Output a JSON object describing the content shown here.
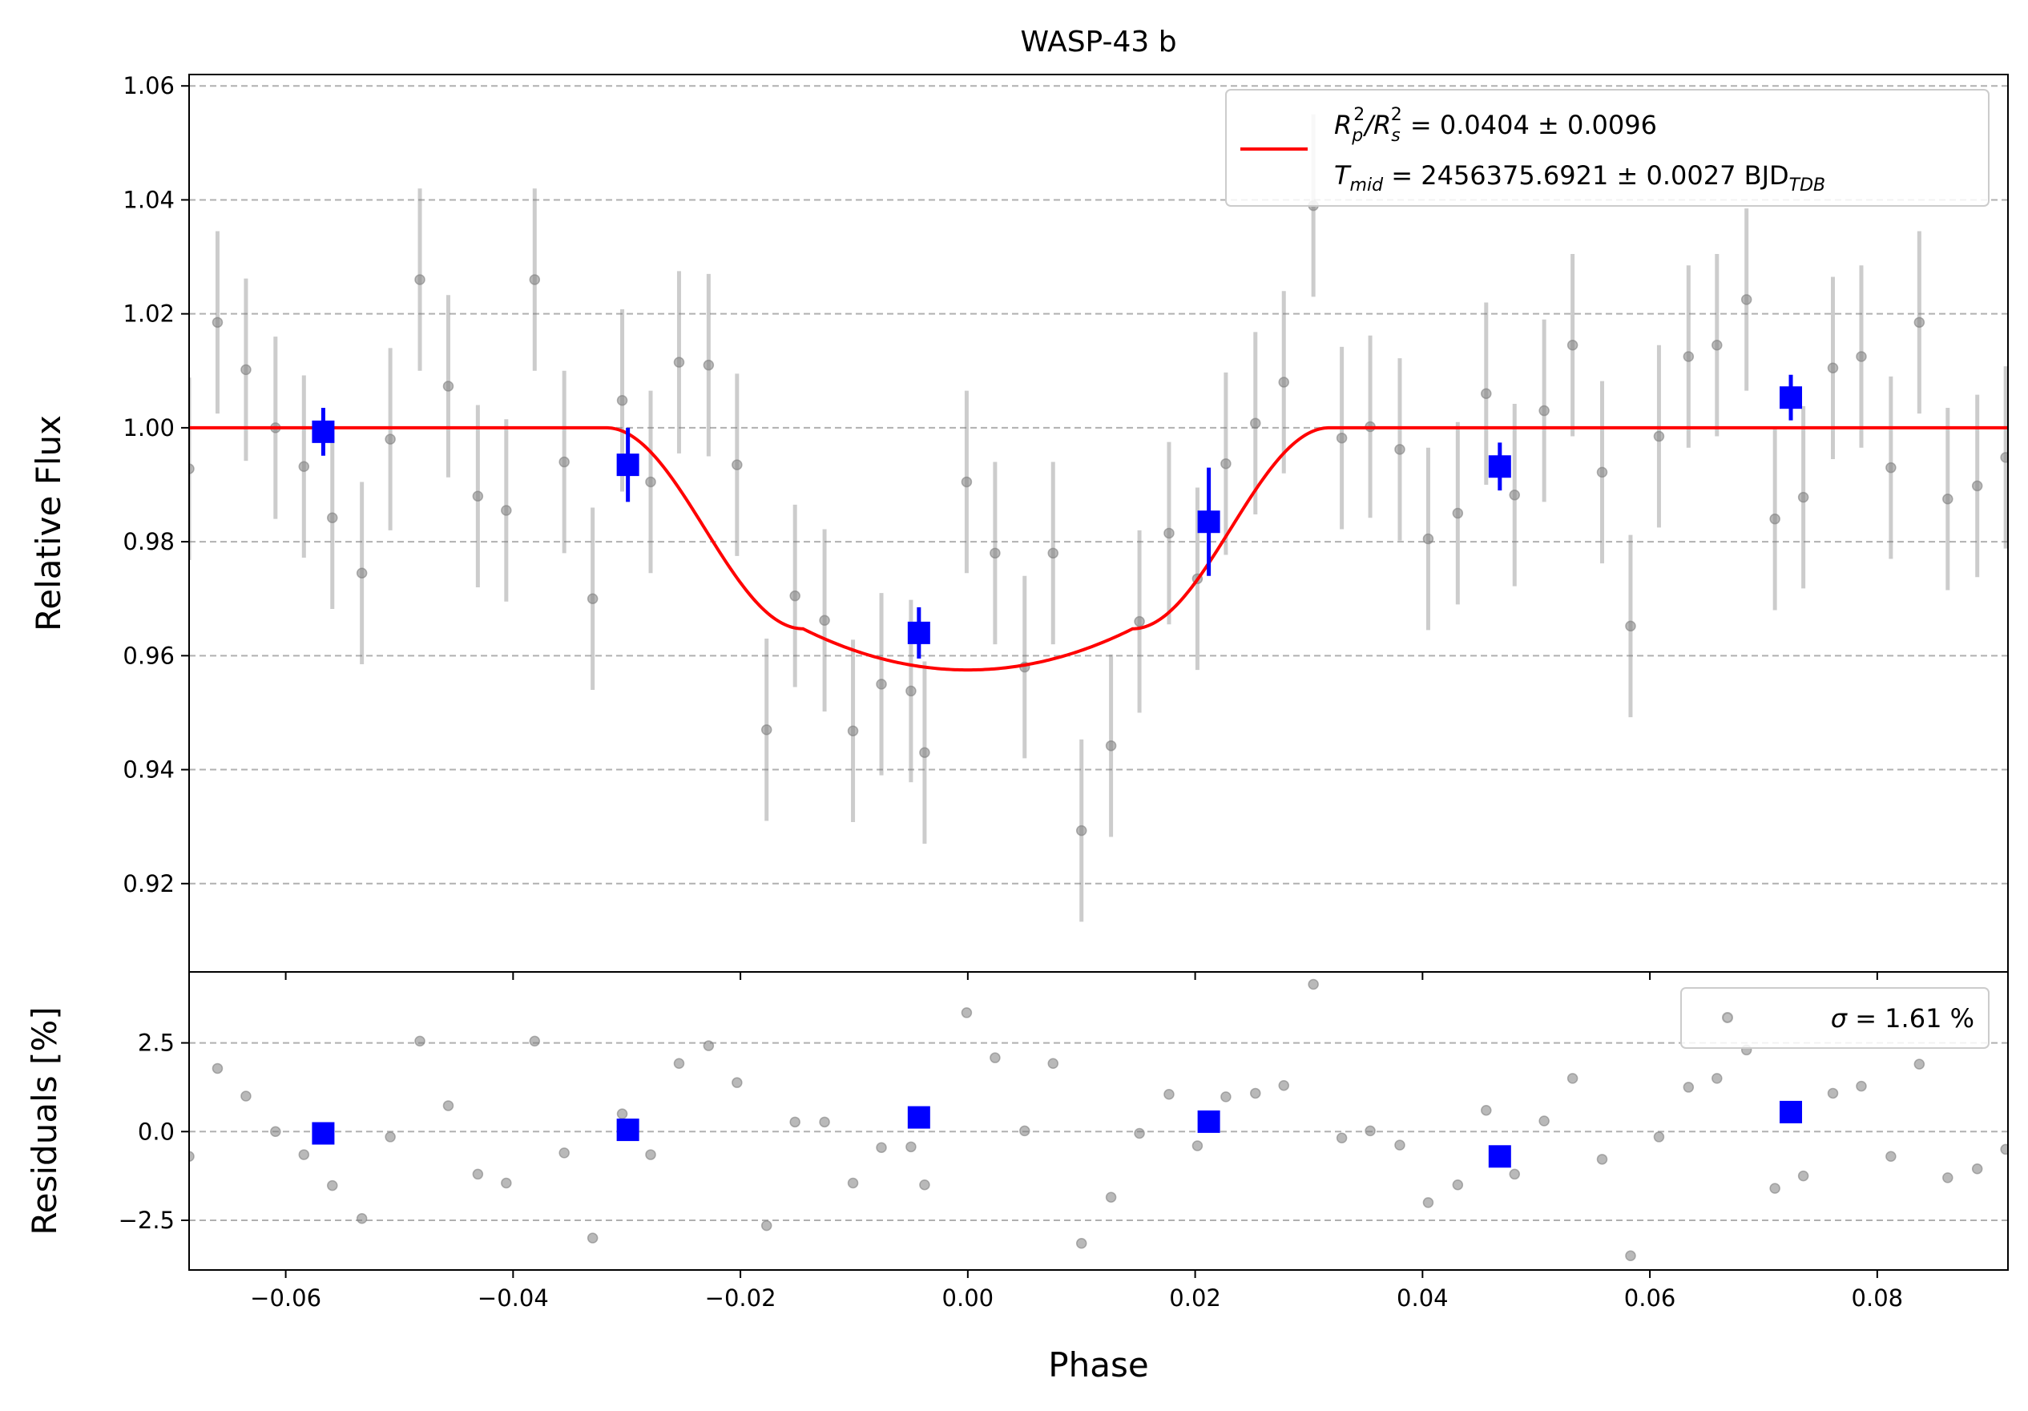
{
  "chart_data": {
    "type": "scatter",
    "title": "WASP-43 b",
    "xlabel": "Phase",
    "xlim": [
      -0.0685,
      0.0915
    ],
    "xticks": [
      "−0.06",
      "−0.04",
      "−0.02",
      "0.00",
      "0.02",
      "0.04",
      "0.06",
      "0.08"
    ],
    "xtick_values": [
      -0.06,
      -0.04,
      -0.02,
      0.0,
      0.02,
      0.04,
      0.06,
      0.08
    ],
    "colors": {
      "raw": "#808080",
      "binned": "#0000ff",
      "model": "#ff0000",
      "grid": "#b0b0b0"
    },
    "top": {
      "ylabel": "Relative Flux",
      "ylim": [
        0.9045,
        1.062
      ],
      "yticks": [
        "0.92",
        "0.94",
        "0.96",
        "0.98",
        "1.00",
        "1.02",
        "1.04",
        "1.06"
      ],
      "ytick_values": [
        0.92,
        0.94,
        0.96,
        0.98,
        1.0,
        1.02,
        1.04,
        1.06
      ],
      "grid": "horizontal dashed",
      "legend": {
        "position": "top-right",
        "line1": {
          "main": "R",
          "sub_p": "p",
          "sup2": "2",
          "slash": "/R",
          "sub_s": "s",
          "tail": " = 0.0404 ± 0.0096"
        },
        "line2": {
          "main": "T",
          "sub_mid": "mid",
          "tail": " = 2456375.6921 ± 0.0027 BJD",
          "sub_tdb": "TDB"
        }
      },
      "model": {
        "rp2_rs2": 0.0404,
        "tmid_half_width": 0.0318,
        "ingress_end": 0.0145,
        "flat_level": 1.0,
        "min_level": 0.9575
      },
      "raw_points": [
        {
          "x": -0.0685,
          "y": 0.9928,
          "err": 0.016
        },
        {
          "x": -0.066,
          "y": 1.0185,
          "err": 0.016
        },
        {
          "x": -0.0635,
          "y": 1.0102,
          "err": 0.016
        },
        {
          "x": -0.0609,
          "y": 1.0,
          "err": 0.016
        },
        {
          "x": -0.0584,
          "y": 0.9932,
          "err": 0.016
        },
        {
          "x": -0.0559,
          "y": 0.9842,
          "err": 0.016
        },
        {
          "x": -0.0533,
          "y": 0.9745,
          "err": 0.016
        },
        {
          "x": -0.0508,
          "y": 0.998,
          "err": 0.016
        },
        {
          "x": -0.0482,
          "y": 1.026,
          "err": 0.016
        },
        {
          "x": -0.0457,
          "y": 1.0073,
          "err": 0.016
        },
        {
          "x": -0.0431,
          "y": 0.988,
          "err": 0.016
        },
        {
          "x": -0.0406,
          "y": 0.9855,
          "err": 0.016
        },
        {
          "x": -0.0381,
          "y": 1.026,
          "err": 0.016
        },
        {
          "x": -0.0355,
          "y": 0.994,
          "err": 0.016
        },
        {
          "x": -0.033,
          "y": 0.97,
          "err": 0.016
        },
        {
          "x": -0.0304,
          "y": 1.0048,
          "err": 0.016
        },
        {
          "x": -0.0279,
          "y": 0.9905,
          "err": 0.016
        },
        {
          "x": -0.0254,
          "y": 1.0115,
          "err": 0.016
        },
        {
          "x": -0.0228,
          "y": 1.011,
          "err": 0.016
        },
        {
          "x": -0.0203,
          "y": 0.9935,
          "err": 0.016
        },
        {
          "x": -0.0177,
          "y": 0.947,
          "err": 0.016
        },
        {
          "x": -0.0152,
          "y": 0.9705,
          "err": 0.016
        },
        {
          "x": -0.0126,
          "y": 0.9662,
          "err": 0.016
        },
        {
          "x": -0.0101,
          "y": 0.9468,
          "err": 0.016
        },
        {
          "x": -0.0076,
          "y": 0.955,
          "err": 0.016
        },
        {
          "x": -0.005,
          "y": 0.9538,
          "err": 0.016
        },
        {
          "x": -0.0038,
          "y": 0.943,
          "err": 0.016
        },
        {
          "x": -0.0001,
          "y": 0.9905,
          "err": 0.016
        },
        {
          "x": 0.0024,
          "y": 0.978,
          "err": 0.016
        },
        {
          "x": 0.005,
          "y": 0.958,
          "err": 0.016
        },
        {
          "x": 0.0075,
          "y": 0.978,
          "err": 0.016
        },
        {
          "x": 0.01,
          "y": 0.9293,
          "err": 0.016
        },
        {
          "x": 0.0126,
          "y": 0.9442,
          "err": 0.016
        },
        {
          "x": 0.0151,
          "y": 0.966,
          "err": 0.016
        },
        {
          "x": 0.0177,
          "y": 0.9815,
          "err": 0.016
        },
        {
          "x": 0.0202,
          "y": 0.9735,
          "err": 0.016
        },
        {
          "x": 0.0227,
          "y": 0.9937,
          "err": 0.016
        },
        {
          "x": 0.0253,
          "y": 1.0008,
          "err": 0.016
        },
        {
          "x": 0.0278,
          "y": 1.008,
          "err": 0.016
        },
        {
          "x": 0.0304,
          "y": 1.039,
          "err": 0.016
        },
        {
          "x": 0.0329,
          "y": 0.9982,
          "err": 0.016
        },
        {
          "x": 0.0354,
          "y": 1.0002,
          "err": 0.016
        },
        {
          "x": 0.038,
          "y": 0.9962,
          "err": 0.016
        },
        {
          "x": 0.0405,
          "y": 0.9805,
          "err": 0.016
        },
        {
          "x": 0.0431,
          "y": 0.985,
          "err": 0.016
        },
        {
          "x": 0.0456,
          "y": 1.006,
          "err": 0.016
        },
        {
          "x": 0.0481,
          "y": 0.9882,
          "err": 0.016
        },
        {
          "x": 0.0507,
          "y": 1.003,
          "err": 0.016
        },
        {
          "x": 0.0532,
          "y": 1.0145,
          "err": 0.016
        },
        {
          "x": 0.0558,
          "y": 0.9922,
          "err": 0.016
        },
        {
          "x": 0.0583,
          "y": 0.9652,
          "err": 0.016
        },
        {
          "x": 0.0608,
          "y": 0.9985,
          "err": 0.016
        },
        {
          "x": 0.0634,
          "y": 1.0125,
          "err": 0.016
        },
        {
          "x": 0.0659,
          "y": 1.0145,
          "err": 0.016
        },
        {
          "x": 0.0685,
          "y": 1.0225,
          "err": 0.016
        },
        {
          "x": 0.071,
          "y": 0.984,
          "err": 0.016
        },
        {
          "x": 0.0735,
          "y": 0.9878,
          "err": 0.016
        },
        {
          "x": 0.0761,
          "y": 1.0105,
          "err": 0.016
        },
        {
          "x": 0.0786,
          "y": 1.0125,
          "err": 0.016
        },
        {
          "x": 0.0812,
          "y": 0.993,
          "err": 0.016
        },
        {
          "x": 0.0837,
          "y": 1.0185,
          "err": 0.016
        },
        {
          "x": 0.0862,
          "y": 0.9875,
          "err": 0.016
        },
        {
          "x": 0.0888,
          "y": 0.9898,
          "err": 0.016
        },
        {
          "x": 0.0913,
          "y": 0.9948,
          "err": 0.016
        }
      ],
      "binned_points": [
        {
          "x": -0.0567,
          "y": 0.9993,
          "err": 0.0042
        },
        {
          "x": -0.0299,
          "y": 0.9935,
          "err": 0.0065
        },
        {
          "x": -0.0043,
          "y": 0.964,
          "err": 0.0045
        },
        {
          "x": 0.0212,
          "y": 0.9835,
          "err": 0.0095
        },
        {
          "x": 0.0468,
          "y": 0.9932,
          "err": 0.0042
        },
        {
          "x": 0.0724,
          "y": 1.0053,
          "err": 0.004
        }
      ]
    },
    "bottom": {
      "ylabel": "Residuals [%]",
      "ylim": [
        -3.9,
        4.5
      ],
      "yticks": [
        "−2.5",
        "0.0",
        "2.5"
      ],
      "ytick_values": [
        -2.5,
        0.0,
        2.5
      ],
      "grid": "horizontal dashed",
      "legend": {
        "position": "top-right",
        "symbol": "σ",
        "text": " = 1.61 %"
      },
      "raw_points": [
        {
          "x": -0.0685,
          "y": -0.7
        },
        {
          "x": -0.066,
          "y": 1.78
        },
        {
          "x": -0.0635,
          "y": 1.0
        },
        {
          "x": -0.0609,
          "y": 0.0
        },
        {
          "x": -0.0584,
          "y": -0.65
        },
        {
          "x": -0.0559,
          "y": -1.52
        },
        {
          "x": -0.0533,
          "y": -2.45
        },
        {
          "x": -0.0508,
          "y": -0.15
        },
        {
          "x": -0.0482,
          "y": 2.55
        },
        {
          "x": -0.0457,
          "y": 0.73
        },
        {
          "x": -0.0431,
          "y": -1.2
        },
        {
          "x": -0.0406,
          "y": -1.45
        },
        {
          "x": -0.0381,
          "y": 2.55
        },
        {
          "x": -0.0355,
          "y": -0.6
        },
        {
          "x": -0.033,
          "y": -3.0
        },
        {
          "x": -0.0304,
          "y": 0.5
        },
        {
          "x": -0.0279,
          "y": -0.65
        },
        {
          "x": -0.0254,
          "y": 1.92
        },
        {
          "x": -0.0228,
          "y": 2.42
        },
        {
          "x": -0.0203,
          "y": 1.38
        },
        {
          "x": -0.0177,
          "y": -2.65
        },
        {
          "x": -0.0152,
          "y": 0.27
        },
        {
          "x": -0.0126,
          "y": 0.27
        },
        {
          "x": -0.0101,
          "y": -1.45
        },
        {
          "x": -0.0076,
          "y": -0.45
        },
        {
          "x": -0.005,
          "y": -0.43
        },
        {
          "x": -0.0038,
          "y": -1.5
        },
        {
          "x": -0.0001,
          "y": 3.35
        },
        {
          "x": 0.0024,
          "y": 2.08
        },
        {
          "x": 0.005,
          "y": 0.02
        },
        {
          "x": 0.0075,
          "y": 1.92
        },
        {
          "x": 0.01,
          "y": -3.15
        },
        {
          "x": 0.0126,
          "y": -1.85
        },
        {
          "x": 0.0151,
          "y": -0.05
        },
        {
          "x": 0.0177,
          "y": 1.05
        },
        {
          "x": 0.0202,
          "y": -0.4
        },
        {
          "x": 0.0227,
          "y": 0.98
        },
        {
          "x": 0.0253,
          "y": 1.08
        },
        {
          "x": 0.0278,
          "y": 1.3
        },
        {
          "x": 0.0304,
          "y": 4.15
        },
        {
          "x": 0.0329,
          "y": -0.18
        },
        {
          "x": 0.0354,
          "y": 0.02
        },
        {
          "x": 0.038,
          "y": -0.38
        },
        {
          "x": 0.0405,
          "y": -2.0
        },
        {
          "x": 0.0431,
          "y": -1.5
        },
        {
          "x": 0.0456,
          "y": 0.6
        },
        {
          "x": 0.0481,
          "y": -1.2
        },
        {
          "x": 0.0507,
          "y": 0.3
        },
        {
          "x": 0.0532,
          "y": 1.5
        },
        {
          "x": 0.0558,
          "y": -0.78
        },
        {
          "x": 0.0583,
          "y": -3.5
        },
        {
          "x": 0.0608,
          "y": -0.15
        },
        {
          "x": 0.0634,
          "y": 1.25
        },
        {
          "x": 0.0659,
          "y": 1.5
        },
        {
          "x": 0.0685,
          "y": 2.3
        },
        {
          "x": 0.071,
          "y": -1.6
        },
        {
          "x": 0.0735,
          "y": -1.25
        },
        {
          "x": 0.0761,
          "y": 1.08
        },
        {
          "x": 0.0786,
          "y": 1.28
        },
        {
          "x": 0.0812,
          "y": -0.7
        },
        {
          "x": 0.0837,
          "y": 1.9
        },
        {
          "x": 0.0862,
          "y": -1.3
        },
        {
          "x": 0.0888,
          "y": -1.05
        },
        {
          "x": 0.0913,
          "y": -0.5
        }
      ],
      "binned_points": [
        {
          "x": -0.0567,
          "y": -0.05
        },
        {
          "x": -0.0299,
          "y": 0.05
        },
        {
          "x": -0.0043,
          "y": 0.4
        },
        {
          "x": 0.0212,
          "y": 0.28
        },
        {
          "x": 0.0468,
          "y": -0.7
        },
        {
          "x": 0.0724,
          "y": 0.55
        }
      ]
    }
  }
}
